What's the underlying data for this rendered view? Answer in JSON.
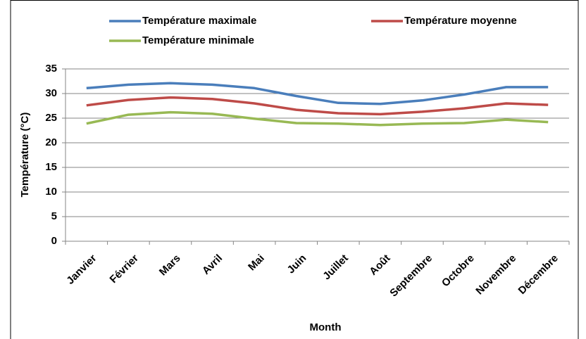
{
  "chart_data": {
    "type": "line",
    "x_label": "Month",
    "y_label": "Température (°C)",
    "categories": [
      "Janvier",
      "Février",
      "Mars",
      "Avril",
      "Mai",
      "Juin",
      "Juillet",
      "Août",
      "Septembre",
      "Octobre",
      "Novembre",
      "Décembre"
    ],
    "series": [
      {
        "name": "Température maximale",
        "color": "#4a7ebb",
        "values": [
          31.1,
          31.8,
          32.1,
          31.8,
          31.1,
          29.5,
          28.1,
          27.9,
          28.6,
          29.8,
          31.3,
          31.3
        ]
      },
      {
        "name": "Température moyenne",
        "color": "#be4b48",
        "values": [
          27.6,
          28.7,
          29.2,
          28.9,
          28.0,
          26.7,
          26.0,
          25.8,
          26.3,
          27.0,
          28.0,
          27.7
        ]
      },
      {
        "name": "Température minimale",
        "color": "#98b954",
        "values": [
          23.9,
          25.7,
          26.2,
          25.9,
          24.9,
          24.0,
          23.9,
          23.6,
          23.9,
          24.0,
          24.7,
          24.2
        ]
      }
    ],
    "ylim": [
      0,
      35
    ],
    "yticks": [
      0,
      5,
      10,
      15,
      20,
      25,
      30,
      35
    ],
    "grid": true,
    "legend": "top"
  }
}
